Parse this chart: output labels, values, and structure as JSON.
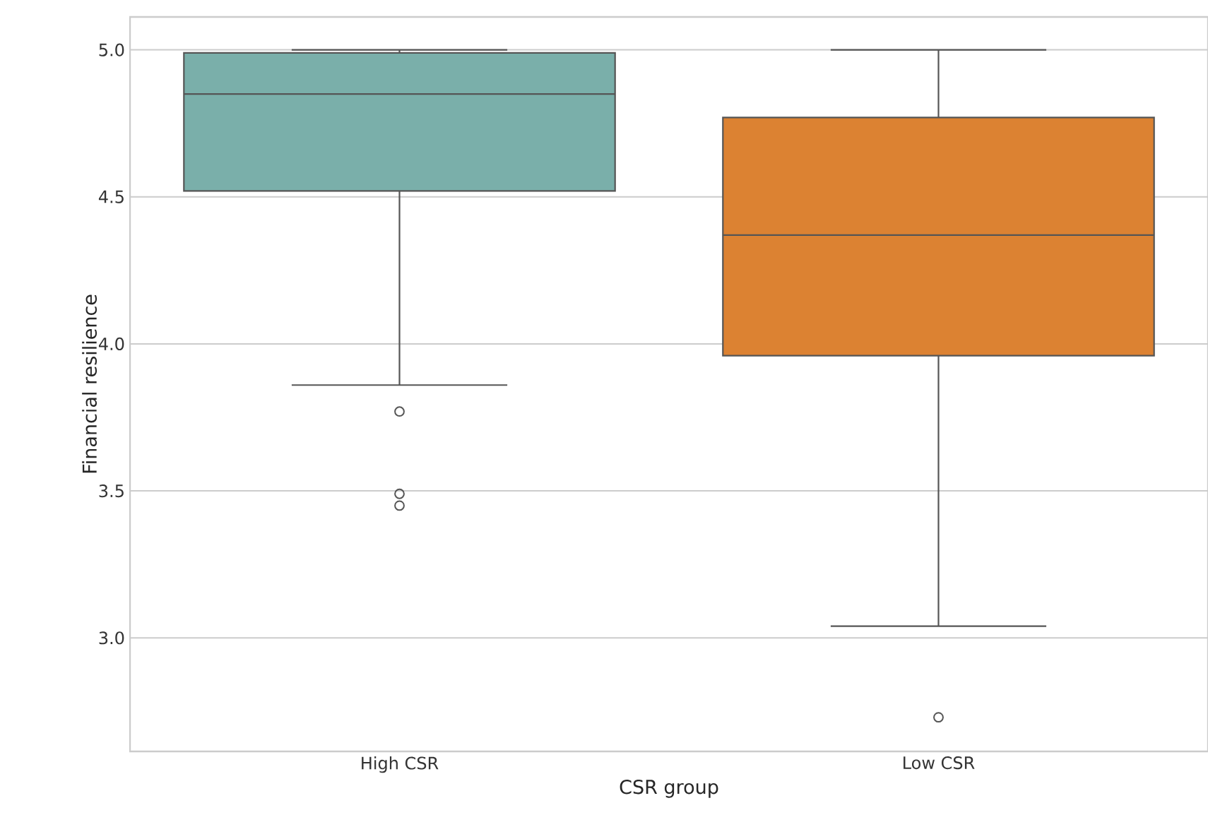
{
  "chart_data": {
    "type": "box",
    "xlabel": "CSR group",
    "ylabel": "Financial resilience",
    "categories": [
      "High CSR",
      "Low CSR"
    ],
    "boxes": [
      {
        "low": 3.86,
        "q1": 4.52,
        "median": 4.85,
        "q3": 4.99,
        "high": 5.0,
        "outliers": [
          3.77,
          3.49,
          3.45
        ]
      },
      {
        "low": 3.04,
        "q1": 3.96,
        "median": 4.37,
        "q3": 4.77,
        "high": 5.0,
        "outliers": [
          2.73
        ]
      }
    ],
    "colors": [
      "#7aafaa",
      "#dc8232"
    ],
    "ylim": [
      2.614,
      5.112
    ],
    "yticks": [
      {
        "value": 3.0,
        "label": "3.0"
      },
      {
        "value": 3.5,
        "label": "3.5"
      },
      {
        "value": 4.0,
        "label": "4.0"
      },
      {
        "value": 4.5,
        "label": "4.5"
      },
      {
        "value": 5.0,
        "label": "5.0"
      }
    ],
    "grid": "y",
    "marker": "circle"
  }
}
